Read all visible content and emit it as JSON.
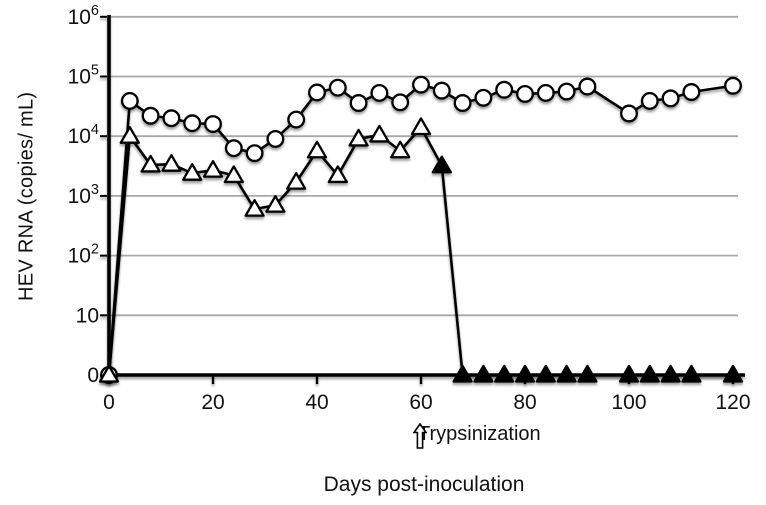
{
  "chart_data": {
    "type": "line",
    "title": "",
    "xlabel": "Days post-inoculation",
    "ylabel": "HEV RNA (copies/ mL)",
    "annotation": {
      "icon": "up-outline-arrow",
      "text": "Trypsinization",
      "at_day": 60
    },
    "grid": true,
    "legend": "none",
    "x_axis": {
      "min": 0,
      "max": 120,
      "ticks": [
        0,
        20,
        40,
        60,
        80,
        100,
        120
      ]
    },
    "y_axis": {
      "scale": "log",
      "ticks": [
        {
          "base": "0",
          "exp": "",
          "value": 0
        },
        {
          "base": "10",
          "exp": "",
          "value": 10
        },
        {
          "base": "10",
          "exp": "2",
          "value": 100
        },
        {
          "base": "10",
          "exp": "3",
          "value": 1000
        },
        {
          "base": "10",
          "exp": "4",
          "value": 10000
        },
        {
          "base": "10",
          "exp": "5",
          "value": 100000
        },
        {
          "base": "10",
          "exp": "6",
          "value": 1000000
        }
      ]
    },
    "x": [
      0,
      4,
      8,
      12,
      16,
      20,
      24,
      28,
      32,
      36,
      40,
      44,
      48,
      52,
      56,
      60,
      64,
      68,
      72,
      76,
      80,
      84,
      88,
      92,
      100,
      104,
      108,
      112,
      120
    ],
    "series": [
      {
        "name": "open-circle-series",
        "marker": "circle",
        "values": [
          0,
          39000,
          22000,
          20000,
          16500,
          16000,
          6300,
          5200,
          9000,
          19000,
          54000,
          65000,
          36000,
          53000,
          37000,
          73000,
          58000,
          36000,
          44000,
          60000,
          51000,
          53000,
          56000,
          68000,
          24000,
          39000,
          43000,
          55000,
          70000
        ]
      },
      {
        "name": "triangle-series",
        "marker": "triangle",
        "filled_from_day": 64,
        "values": [
          0,
          10000,
          3300,
          3400,
          2400,
          2700,
          2200,
          600,
          700,
          1700,
          5700,
          2200,
          9000,
          10500,
          5700,
          14000,
          3200,
          0,
          0,
          0,
          0,
          0,
          0,
          0,
          0,
          0,
          0,
          0,
          0
        ]
      }
    ],
    "colors": {
      "line": "#000000",
      "marker_fill_open": "#ffffff",
      "marker_fill_solid": "#000000",
      "axis": "#000000",
      "grid": "#a8a8a8",
      "background": "#ffffff",
      "text": "#111111"
    }
  }
}
